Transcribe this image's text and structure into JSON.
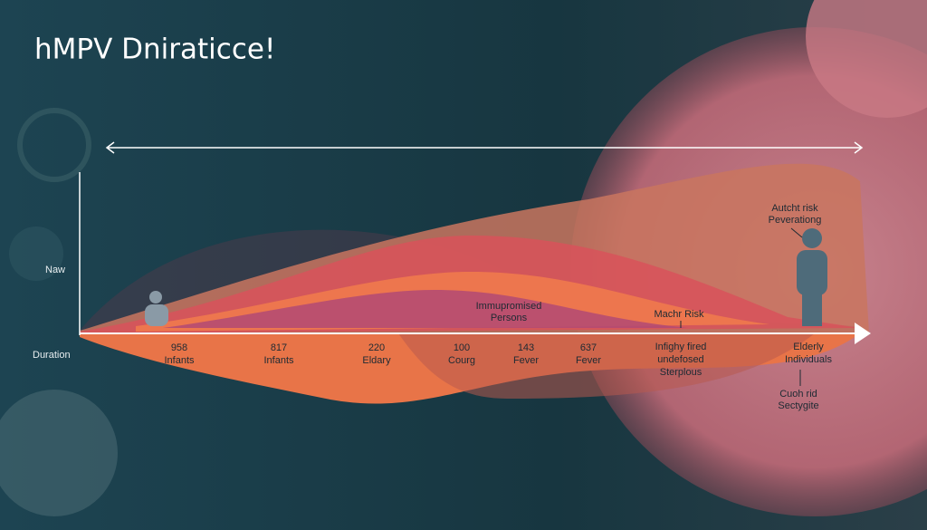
{
  "title": "hMPV Dniraticce!",
  "axis": {
    "y_label": "Naw",
    "x_label": "Duration"
  },
  "markers": [
    {
      "lines": [
        "958",
        "Infants"
      ]
    },
    {
      "lines": [
        "817",
        "Infants"
      ]
    },
    {
      "lines": [
        "220",
        "Eldary"
      ]
    },
    {
      "lines": [
        "100",
        "Courg"
      ]
    },
    {
      "lines": [
        "143",
        "Fever"
      ]
    },
    {
      "lines": [
        "637",
        "Fever"
      ]
    },
    {
      "lines": [
        "Infighy fired",
        "undefosed",
        "Sterplous"
      ]
    },
    {
      "lines": [
        "Elderly",
        "Individuals"
      ]
    }
  ],
  "annotations": [
    {
      "lines": [
        "Immupromised",
        "Persons"
      ]
    },
    {
      "lines": [
        "Machr Risk"
      ]
    },
    {
      "lines": [
        "Autcht risk",
        "Peverationg"
      ]
    },
    {
      "lines": [
        "Cuoh rid",
        "Sectygite"
      ]
    }
  ]
}
